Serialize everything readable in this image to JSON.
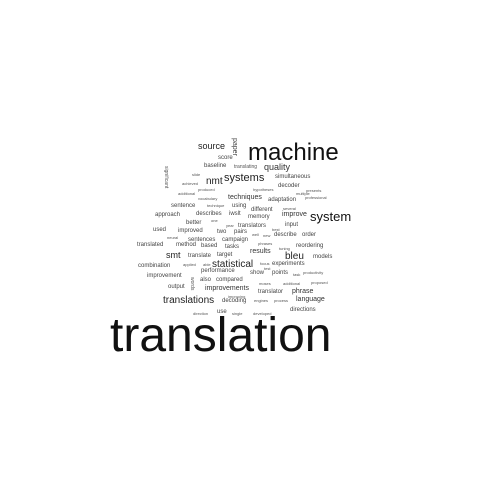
{
  "cloud": {
    "words": [
      {
        "id": "translation",
        "text": "translation"
      },
      {
        "id": "machine",
        "text": "machine"
      },
      {
        "id": "system",
        "text": "system"
      },
      {
        "id": "systems",
        "text": "systems"
      },
      {
        "id": "translations",
        "text": "translations"
      },
      {
        "id": "statistical",
        "text": "statistical"
      },
      {
        "id": "source",
        "text": "source"
      },
      {
        "id": "nmt",
        "text": "nmt"
      },
      {
        "id": "quality",
        "text": "quality"
      },
      {
        "id": "bleu",
        "text": "bleu"
      },
      {
        "id": "smt",
        "text": "smt"
      },
      {
        "id": "paper",
        "text": "paper"
      },
      {
        "id": "techniques",
        "text": "techniques"
      },
      {
        "id": "improve",
        "text": "improve"
      },
      {
        "id": "improvements",
        "text": "improvements"
      },
      {
        "id": "sentences",
        "text": "sentences"
      },
      {
        "id": "campaign",
        "text": "campaign"
      },
      {
        "id": "language",
        "text": "language"
      },
      {
        "id": "directions",
        "text": "directions"
      },
      {
        "id": "experiments",
        "text": "experiments"
      },
      {
        "id": "phrase",
        "text": "phrase"
      },
      {
        "id": "reordering",
        "text": "reordering"
      },
      {
        "id": "describe",
        "text": "describe"
      },
      {
        "id": "order",
        "text": "order"
      },
      {
        "id": "input",
        "text": "input"
      },
      {
        "id": "models",
        "text": "models"
      },
      {
        "id": "results",
        "text": "results"
      },
      {
        "id": "translator",
        "text": "translator"
      },
      {
        "id": "decoding",
        "text": "decoding"
      },
      {
        "id": "performance",
        "text": "performance"
      },
      {
        "id": "output",
        "text": "output"
      },
      {
        "id": "improvement",
        "text": "improvement"
      },
      {
        "id": "combination",
        "text": "combination"
      },
      {
        "id": "translated",
        "text": "translated"
      },
      {
        "id": "method",
        "text": "method"
      },
      {
        "id": "based",
        "text": "based"
      },
      {
        "id": "tasks",
        "text": "tasks"
      },
      {
        "id": "translate",
        "text": "translate"
      },
      {
        "id": "target",
        "text": "target"
      },
      {
        "id": "approach",
        "text": "approach"
      },
      {
        "id": "describes",
        "text": "describes"
      },
      {
        "id": "iwslt",
        "text": "iwslt"
      },
      {
        "id": "different",
        "text": "different"
      },
      {
        "id": "memory",
        "text": "memory"
      },
      {
        "id": "sentence",
        "text": "sentence"
      },
      {
        "id": "using",
        "text": "using"
      },
      {
        "id": "adaptation",
        "text": "adaptation"
      },
      {
        "id": "simultaneous",
        "text": "simultaneous"
      },
      {
        "id": "decoder",
        "text": "decoder"
      },
      {
        "id": "baseline",
        "text": "baseline"
      },
      {
        "id": "translating",
        "text": "translating"
      },
      {
        "id": "score",
        "text": "score"
      },
      {
        "id": "better",
        "text": "better"
      },
      {
        "id": "used",
        "text": "used"
      },
      {
        "id": "improved",
        "text": "improved"
      },
      {
        "id": "two",
        "text": "two"
      },
      {
        "id": "pairs",
        "text": "pairs"
      },
      {
        "id": "translators",
        "text": "translators"
      },
      {
        "id": "also",
        "text": "also"
      },
      {
        "id": "compared",
        "text": "compared"
      },
      {
        "id": "show",
        "text": "show"
      },
      {
        "id": "points",
        "text": "points"
      },
      {
        "id": "use",
        "text": "use"
      },
      {
        "id": "significant",
        "text": "significant"
      },
      {
        "id": "words",
        "text": "words"
      },
      {
        "id": "hypotheses",
        "text": "hypotheses"
      },
      {
        "id": "presents",
        "text": "presents"
      },
      {
        "id": "multiple",
        "text": "multiple"
      },
      {
        "id": "professional",
        "text": "professional"
      },
      {
        "id": "several",
        "text": "several"
      },
      {
        "id": "produced",
        "text": "produced"
      },
      {
        "id": "additional",
        "text": "additional"
      },
      {
        "id": "vocabulary",
        "text": "vocabulary"
      },
      {
        "id": "technique",
        "text": "technique"
      },
      {
        "id": "achieved",
        "text": "achieved"
      },
      {
        "id": "slide",
        "text": "slide"
      },
      {
        "id": "one",
        "text": "one"
      },
      {
        "id": "year",
        "text": "year"
      },
      {
        "id": "well",
        "text": "well"
      },
      {
        "id": "new",
        "text": "new"
      },
      {
        "id": "best",
        "text": "best"
      },
      {
        "id": "phrases",
        "text": "phrases"
      },
      {
        "id": "tuning",
        "text": "tuning"
      },
      {
        "id": "neural",
        "text": "neural"
      },
      {
        "id": "applied",
        "text": "applied"
      },
      {
        "id": "able",
        "text": "able"
      },
      {
        "id": "focus",
        "text": "focus"
      },
      {
        "id": "test",
        "text": "test"
      },
      {
        "id": "productivity",
        "text": "productivity"
      },
      {
        "id": "task",
        "text": "task"
      },
      {
        "id": "moses",
        "text": "moses"
      },
      {
        "id": "additional2",
        "text": "additional"
      },
      {
        "id": "proposed",
        "text": "proposed"
      },
      {
        "id": "improving",
        "text": "improving"
      },
      {
        "id": "engines",
        "text": "engines"
      },
      {
        "id": "process",
        "text": "process"
      },
      {
        "id": "direction",
        "text": "direction"
      },
      {
        "id": "single",
        "text": "single"
      },
      {
        "id": "developed",
        "text": "developed"
      }
    ]
  }
}
